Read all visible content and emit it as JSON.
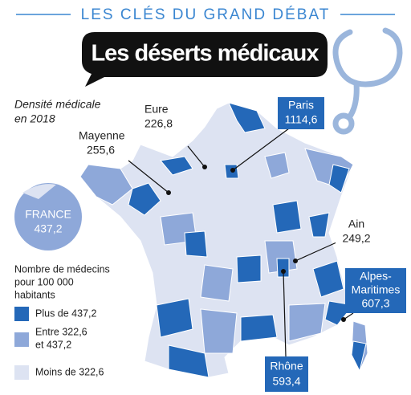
{
  "header": {
    "kicker": "LES CLÉS DU GRAND DÉBAT",
    "title": "Les déserts médicaux"
  },
  "subtitle": [
    "Densité médicale",
    "en 2018"
  ],
  "national": {
    "name": "FRANCE",
    "value": "437,2"
  },
  "callouts": [
    {
      "name": [
        "Eure"
      ],
      "value": "226,8"
    },
    {
      "name": [
        "Mayenne"
      ],
      "value": "255,6"
    },
    {
      "name": [
        "Paris"
      ],
      "value": "1114,6"
    },
    {
      "name": [
        "Ain"
      ],
      "value": "249,2"
    },
    {
      "name": [
        "Alpes-",
        "Maritimes"
      ],
      "value": "607,3"
    },
    {
      "name": [
        "Rhône"
      ],
      "value": "593,4"
    }
  ],
  "legend": {
    "title": [
      "Nombre de médecins",
      "pour 100 000",
      "habitants"
    ],
    "items": [
      {
        "label": [
          "Plus de 437,2"
        ],
        "color": "#2468b8"
      },
      {
        "label": [
          "Entre 322,6",
          "et 437,2"
        ],
        "color": "#8ea8d9"
      },
      {
        "label": [
          "Moins de 322,6"
        ],
        "color": "#dde3f2"
      }
    ]
  }
}
